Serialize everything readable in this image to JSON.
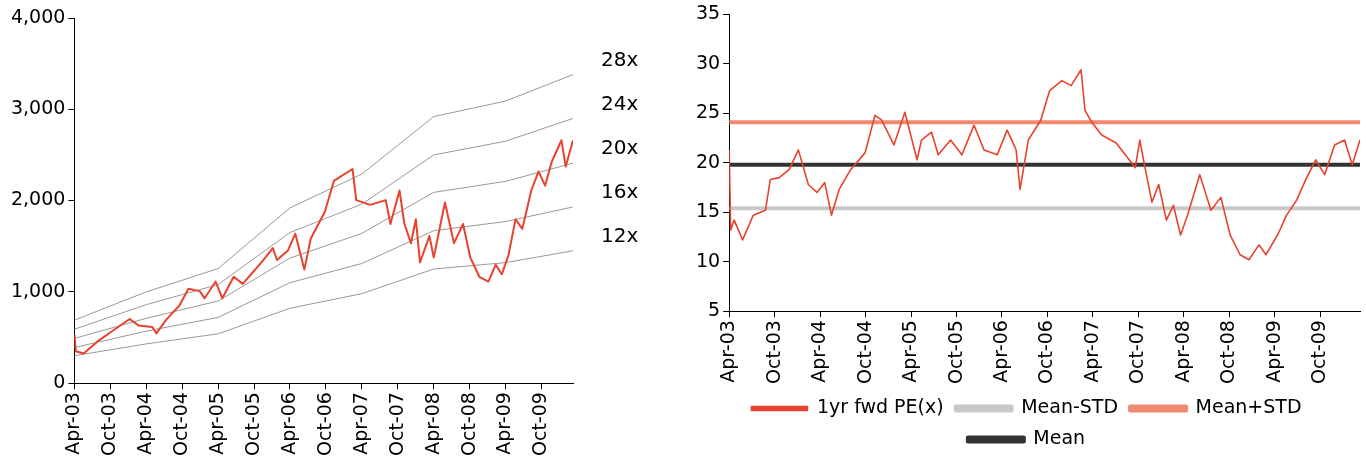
{
  "chart_data": [
    {
      "type": "line",
      "grid": false,
      "legend": false,
      "marker": "none",
      "xlim": [
        "2003-04-01",
        "2010-03-10"
      ],
      "xticks": [
        {
          "value": "2003-04-01",
          "label": "Apr-03"
        },
        {
          "value": "2003-10-01",
          "label": "Oct-03"
        },
        {
          "value": "2004-04-01",
          "label": "Apr-04"
        },
        {
          "value": "2004-10-01",
          "label": "Oct-04"
        },
        {
          "value": "2005-04-01",
          "label": "Apr-05"
        },
        {
          "value": "2005-10-01",
          "label": "Oct-05"
        },
        {
          "value": "2006-04-01",
          "label": "Apr-06"
        },
        {
          "value": "2006-10-01",
          "label": "Oct-06"
        },
        {
          "value": "2007-04-01",
          "label": "Apr-07"
        },
        {
          "value": "2007-10-01",
          "label": "Oct-07"
        },
        {
          "value": "2008-04-01",
          "label": "Apr-08"
        },
        {
          "value": "2008-10-01",
          "label": "Oct-08"
        },
        {
          "value": "2009-04-01",
          "label": "Apr-09"
        },
        {
          "value": "2009-10-01",
          "label": "Oct-09"
        }
      ],
      "ylim": [
        0,
        4000
      ],
      "yticks": [
        0,
        {
          "value": 1000,
          "label": "1,000"
        },
        {
          "value": 2000,
          "label": "2,000"
        },
        {
          "value": 3000,
          "label": "3,000"
        },
        {
          "value": 4000,
          "label": "4,000"
        }
      ],
      "series": [
        {
          "name": "28x",
          "color": "#999999",
          "x": [
            "2003-04-01",
            "2004-04-01",
            "2005-04-01",
            "2006-04-01",
            "2007-04-01",
            "2008-04-01",
            "2009-04-01",
            "2010-03-10"
          ],
          "values": [
            690,
            1000,
            1255,
            1920,
            2290,
            2920,
            3090,
            3380
          ]
        },
        {
          "name": "24x",
          "color": "#999999",
          "x": [
            "2003-04-01",
            "2004-04-01",
            "2005-04-01",
            "2006-04-01",
            "2007-04-01",
            "2008-04-01",
            "2009-04-01",
            "2010-03-10"
          ],
          "values": [
            590,
            860,
            1080,
            1650,
            1960,
            2500,
            2650,
            2900
          ]
        },
        {
          "name": "20x",
          "color": "#999999",
          "x": [
            "2003-04-01",
            "2004-04-01",
            "2005-04-01",
            "2006-04-01",
            "2007-04-01",
            "2008-04-01",
            "2009-04-01",
            "2010-03-10"
          ],
          "values": [
            490,
            710,
            900,
            1370,
            1640,
            2090,
            2210,
            2410
          ]
        },
        {
          "name": "16x",
          "color": "#999999",
          "x": [
            "2003-04-01",
            "2004-04-01",
            "2005-04-01",
            "2006-04-01",
            "2007-04-01",
            "2008-04-01",
            "2009-04-01",
            "2010-03-10"
          ],
          "values": [
            390,
            570,
            720,
            1100,
            1310,
            1670,
            1770,
            1930
          ]
        },
        {
          "name": "12x",
          "color": "#999999",
          "x": [
            "2003-04-01",
            "2004-04-01",
            "2005-04-01",
            "2006-04-01",
            "2007-04-01",
            "2008-04-01",
            "2009-04-01",
            "2010-03-10"
          ],
          "values": [
            300,
            430,
            540,
            820,
            980,
            1250,
            1320,
            1450
          ]
        },
        {
          "color": "#e8432e",
          "x": [
            "2003-04-01",
            "2003-04-08",
            "2003-05-18",
            "2003-07-28",
            "2003-10-04",
            "2004-01-07",
            "2004-02-22",
            "2004-05-01",
            "2004-05-22",
            "2004-07-10",
            "2004-09-16",
            "2004-11-01",
            "2004-12-28",
            "2005-01-22",
            "2005-03-19",
            "2005-04-22",
            "2005-06-19",
            "2005-08-04",
            "2005-11-07",
            "2006-01-04",
            "2006-01-25",
            "2006-03-22",
            "2006-04-28",
            "2006-06-13",
            "2006-07-16",
            "2006-09-25",
            "2006-11-10",
            "2007-02-13",
            "2007-03-04",
            "2007-05-13",
            "2007-08-01",
            "2007-08-25",
            "2007-10-10",
            "2007-11-04",
            "2007-12-07",
            "2008-01-01",
            "2008-01-22",
            "2008-03-10",
            "2008-04-01",
            "2008-05-28",
            "2008-07-13",
            "2008-08-28",
            "2008-10-04",
            "2008-11-19",
            "2009-01-04",
            "2009-02-10",
            "2009-03-13",
            "2009-04-16",
            "2009-05-22",
            "2009-06-25",
            "2009-08-10",
            "2009-09-16",
            "2009-10-19",
            "2009-11-22",
            "2010-01-10",
            "2010-02-01",
            "2010-03-10"
          ],
          "values": [
            535,
            350,
            325,
            457,
            560,
            703,
            630,
            615,
            545,
            693,
            850,
            1034,
            1008,
            929,
            1113,
            929,
            1165,
            1087,
            1323,
            1480,
            1349,
            1454,
            1638,
            1244,
            1585,
            1874,
            2215,
            2346,
            2005,
            1953,
            2005,
            1743,
            2110,
            1743,
            1533,
            1795,
            1323,
            1612,
            1375,
            1979,
            1533,
            1743,
            1375,
            1165,
            1113,
            1297,
            1192,
            1402,
            1795,
            1690,
            2110,
            2320,
            2163,
            2425,
            2661,
            2373,
            2661
          ]
        }
      ]
    },
    {
      "type": "line",
      "grid": false,
      "legend": "bottom",
      "marker": "none",
      "xlim": [
        "2003-04-01",
        "2010-03-10"
      ],
      "xticks": [
        {
          "value": "2003-04-01",
          "label": "Apr-03"
        },
        {
          "value": "2003-10-01",
          "label": "Oct-03"
        },
        {
          "value": "2004-04-01",
          "label": "Apr-04"
        },
        {
          "value": "2004-10-01",
          "label": "Oct-04"
        },
        {
          "value": "2005-04-01",
          "label": "Apr-05"
        },
        {
          "value": "2005-10-01",
          "label": "Oct-05"
        },
        {
          "value": "2006-04-01",
          "label": "Apr-06"
        },
        {
          "value": "2006-10-01",
          "label": "Oct-06"
        },
        {
          "value": "2007-04-01",
          "label": "Apr-07"
        },
        {
          "value": "2007-10-01",
          "label": "Oct-07"
        },
        {
          "value": "2008-04-01",
          "label": "Apr-08"
        },
        {
          "value": "2008-10-01",
          "label": "Oct-08"
        },
        {
          "value": "2009-04-01",
          "label": "Apr-09"
        },
        {
          "value": "2009-10-01",
          "label": "Oct-09"
        }
      ],
      "ylim": [
        5,
        35
      ],
      "yticks": [
        5,
        10,
        15,
        20,
        25,
        30,
        35
      ],
      "series": [
        {
          "name": "Mean",
          "color": "#333333",
          "x": [
            "2003-04-01",
            "2010-03-10"
          ],
          "values": [
            19.8,
            19.8
          ]
        },
        {
          "name": "Mean+STD",
          "color": "#ef8a70",
          "x": [
            "2003-04-01",
            "2010-03-10"
          ],
          "values": [
            24.1,
            24.1
          ]
        },
        {
          "name": "Mean-STD",
          "color": "#c8c8c8",
          "x": [
            "2003-04-01",
            "2010-03-10"
          ],
          "values": [
            15.4,
            15.4
          ]
        },
        {
          "name": "1yr fwd PE(x)",
          "color": "#e8432e",
          "x": [
            "2003-04-01",
            "2003-04-07",
            "2003-04-21",
            "2003-05-25",
            "2003-07-07",
            "2003-08-25",
            "2003-09-13",
            "2003-10-19",
            "2003-11-28",
            "2004-01-04",
            "2004-02-13",
            "2004-03-19",
            "2004-04-19",
            "2004-05-16",
            "2004-06-16",
            "2004-08-01",
            "2004-09-28",
            "2004-11-07",
            "2004-12-04",
            "2005-01-22",
            "2005-03-07",
            "2005-04-25",
            "2005-05-13",
            "2005-06-22",
            "2005-07-19",
            "2005-09-07",
            "2005-10-22",
            "2005-12-10",
            "2006-01-19",
            "2006-03-13",
            "2006-04-22",
            "2006-05-28",
            "2006-06-13",
            "2006-07-16",
            "2006-09-04",
            "2006-10-10",
            "2006-11-28",
            "2007-01-04",
            "2007-02-13",
            "2007-03-01",
            "2007-03-28",
            "2007-05-07",
            "2007-07-04",
            "2007-08-10",
            "2007-09-19",
            "2007-10-07",
            "2007-10-28",
            "2007-11-25",
            "2007-12-22",
            "2008-01-22",
            "2008-02-19",
            "2008-03-19",
            "2008-04-16",
            "2008-06-04",
            "2008-07-19",
            "2008-08-28",
            "2008-10-04",
            "2008-11-13",
            "2008-12-19",
            "2009-01-28",
            "2009-02-25",
            "2009-04-13",
            "2009-05-19",
            "2009-06-28",
            "2009-08-04",
            "2009-09-13",
            "2009-10-19",
            "2009-11-28",
            "2010-01-07",
            "2010-02-07",
            "2010-03-10"
          ],
          "values": [
            21.3,
            13.2,
            14.2,
            12.2,
            14.7,
            15.2,
            18.3,
            18.5,
            19.3,
            21.3,
            17.8,
            17.0,
            18.0,
            14.7,
            17.3,
            19.3,
            21.0,
            24.8,
            24.3,
            21.8,
            25.1,
            20.3,
            22.3,
            23.1,
            20.8,
            22.3,
            20.8,
            23.8,
            21.3,
            20.8,
            23.3,
            21.3,
            17.3,
            22.3,
            24.3,
            27.3,
            28.3,
            27.8,
            29.4,
            25.3,
            24.1,
            22.8,
            22.0,
            20.8,
            19.5,
            22.3,
            19.5,
            16.0,
            17.8,
            14.2,
            15.7,
            12.7,
            14.7,
            18.8,
            15.2,
            16.5,
            12.7,
            10.7,
            10.2,
            11.7,
            10.7,
            12.7,
            14.7,
            16.2,
            18.3,
            20.3,
            18.8,
            21.8,
            22.3,
            19.8,
            22.3
          ]
        }
      ]
    }
  ]
}
